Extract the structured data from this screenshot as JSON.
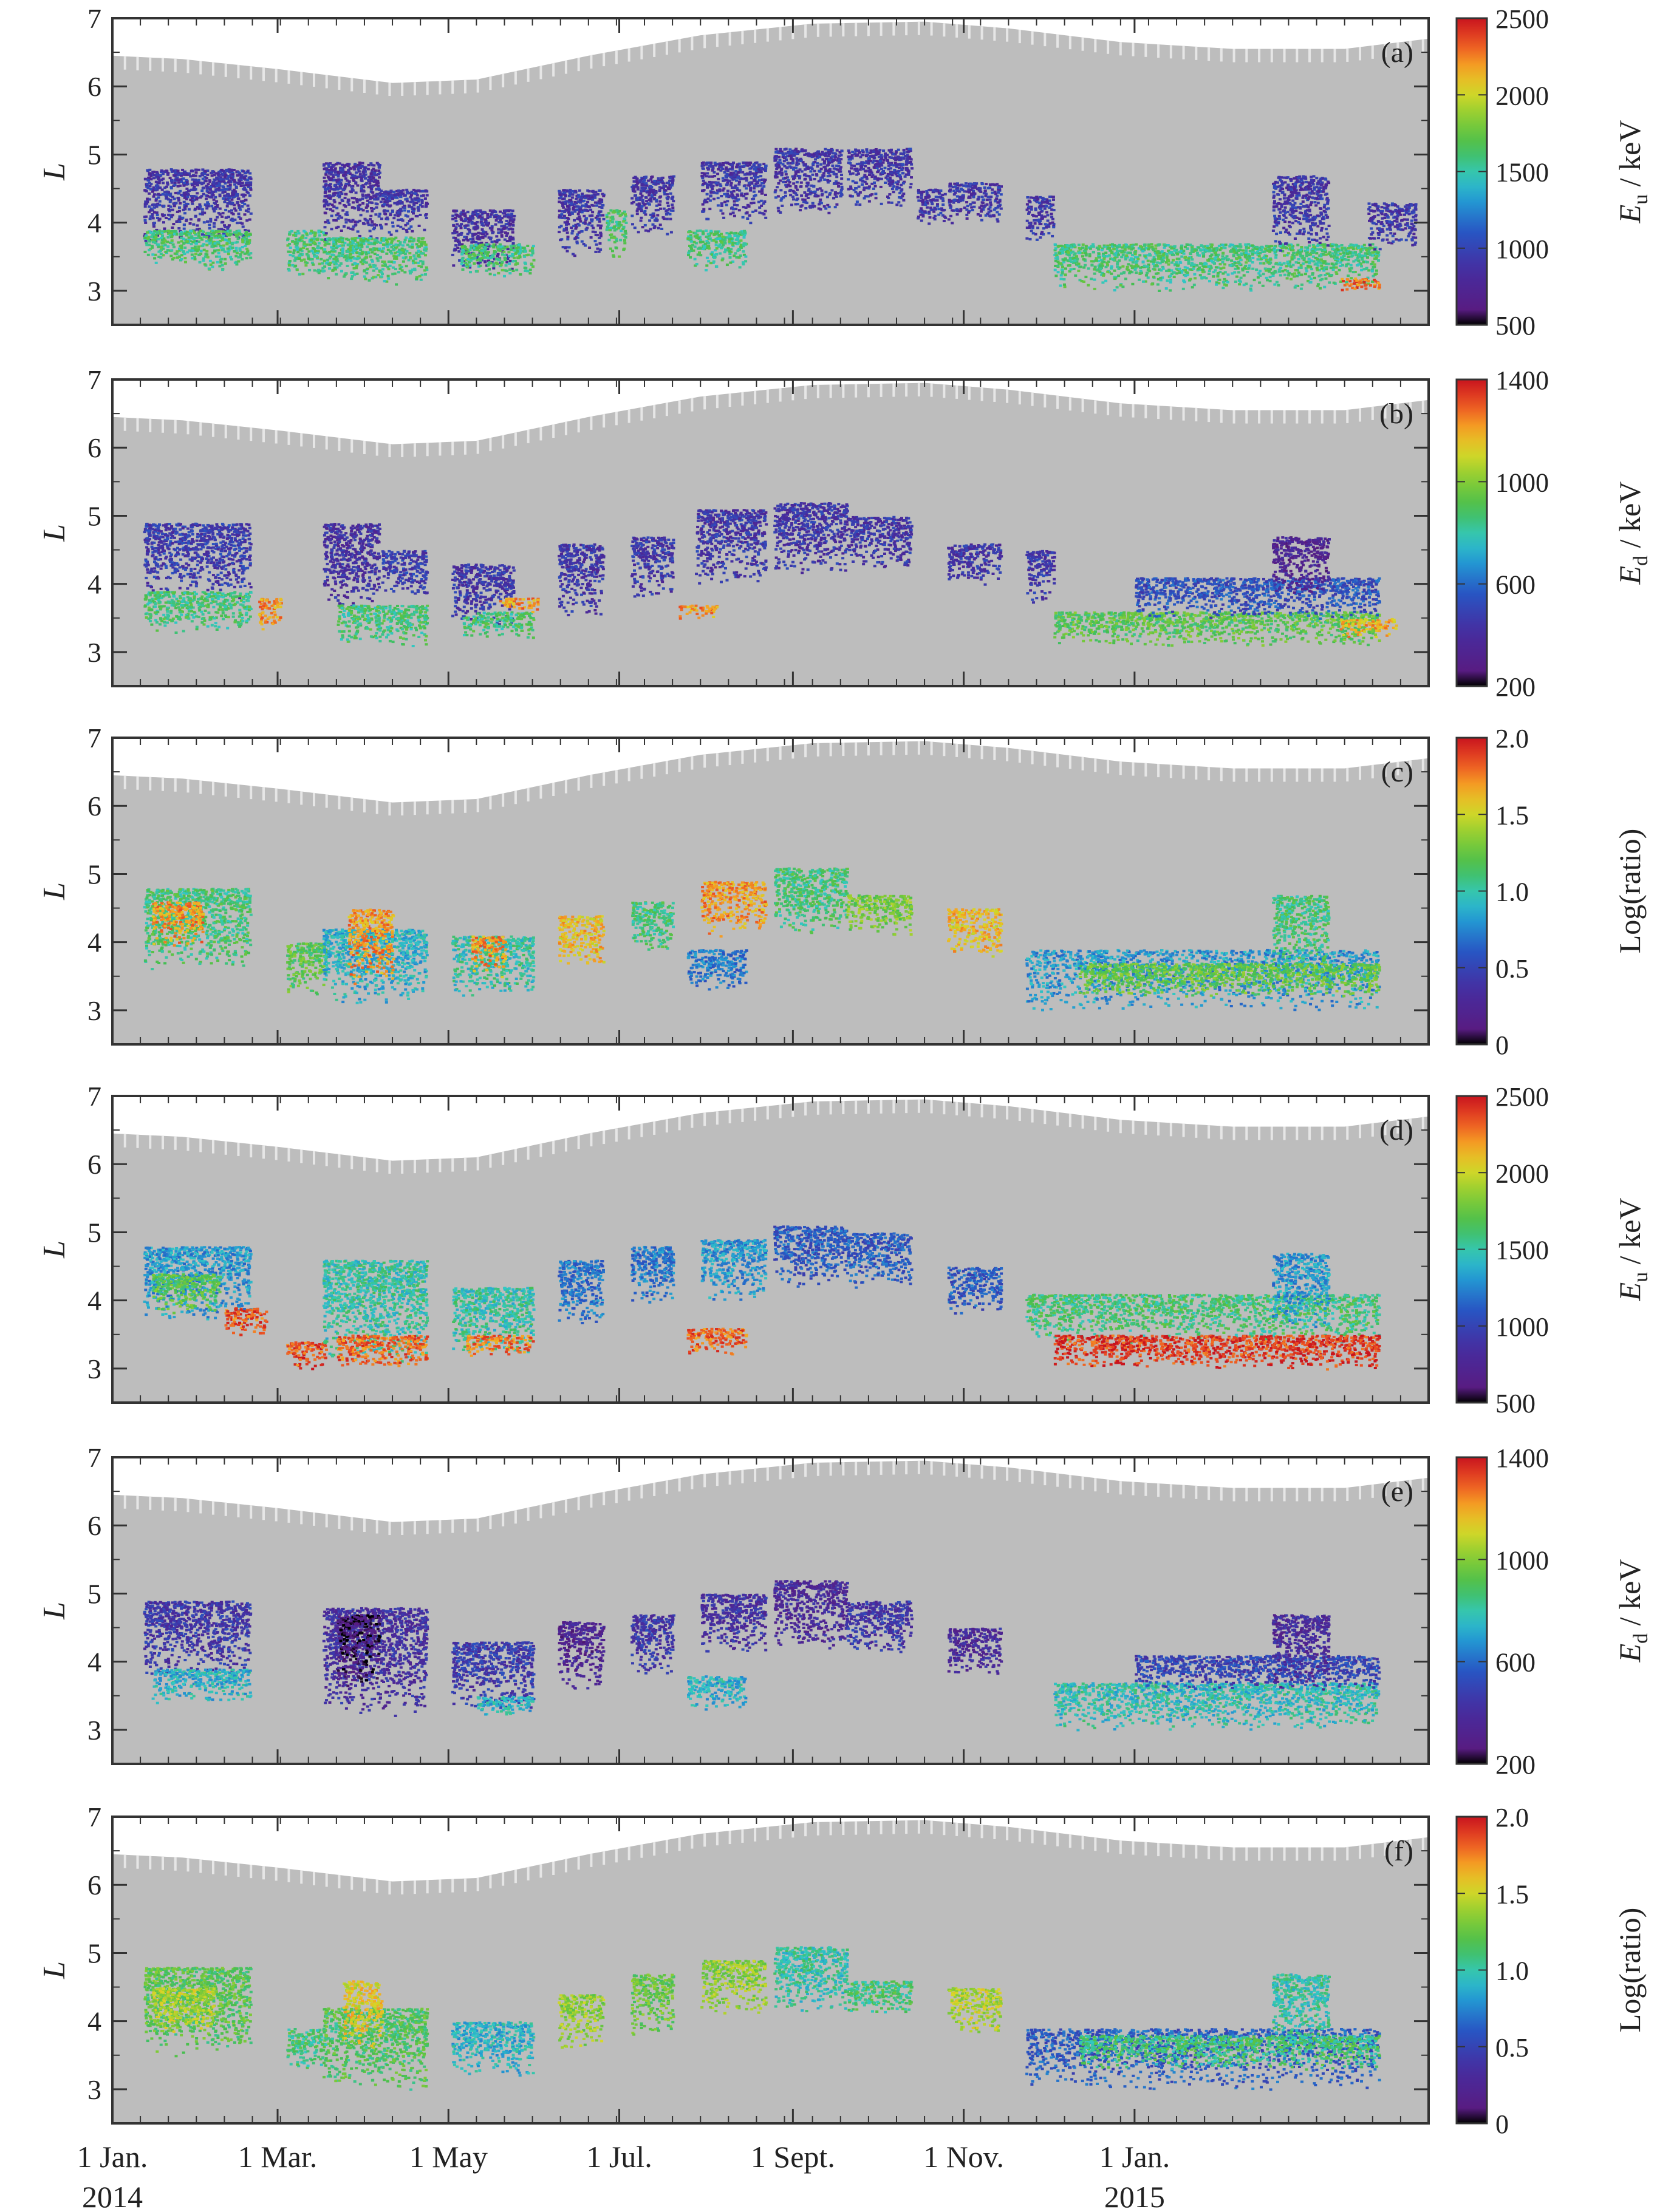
{
  "chart_data": [
    {
      "type": "heatmap",
      "panel_label": "(a)",
      "ylabel": "L",
      "yticks": [
        3,
        4,
        5,
        6,
        7
      ],
      "ylim": [
        2.5,
        7
      ],
      "colorbar": {
        "label_main": "E",
        "label_sub": "u",
        "label_unit": " / keV",
        "ticks": [
          "2500",
          "2000",
          "1500",
          "1000",
          "500"
        ],
        "range": [
          500,
          2500
        ]
      },
      "blobs": [
        {
          "x0": 11,
          "x1": 49,
          "l0": 3.7,
          "l1": 4.8,
          "v": 0.2
        },
        {
          "x0": 11,
          "x1": 49,
          "l0": 3.3,
          "l1": 3.9,
          "v": 0.55
        },
        {
          "x0": 62,
          "x1": 76,
          "l0": 3.2,
          "l1": 3.9,
          "v": 0.55
        },
        {
          "x0": 75,
          "x1": 95,
          "l0": 3.7,
          "l1": 4.9,
          "v": 0.18
        },
        {
          "x0": 76,
          "x1": 112,
          "l0": 3.1,
          "l1": 3.8,
          "v": 0.55
        },
        {
          "x0": 95,
          "x1": 112,
          "l0": 3.8,
          "l1": 4.5,
          "v": 0.2
        },
        {
          "x0": 121,
          "x1": 143,
          "l0": 3.3,
          "l1": 4.2,
          "v": 0.18
        },
        {
          "x0": 124,
          "x1": 150,
          "l0": 3.2,
          "l1": 3.7,
          "v": 0.55
        },
        {
          "x0": 159,
          "x1": 175,
          "l0": 3.5,
          "l1": 4.5,
          "v": 0.2
        },
        {
          "x0": 176,
          "x1": 183,
          "l0": 3.5,
          "l1": 4.2,
          "v": 0.55
        },
        {
          "x0": 185,
          "x1": 200,
          "l0": 3.8,
          "l1": 4.7,
          "v": 0.2
        },
        {
          "x0": 205,
          "x1": 226,
          "l0": 3.3,
          "l1": 3.9,
          "v": 0.55
        },
        {
          "x0": 210,
          "x1": 233,
          "l0": 4.0,
          "l1": 4.9,
          "v": 0.2
        },
        {
          "x0": 236,
          "x1": 260,
          "l0": 4.1,
          "l1": 5.1,
          "v": 0.2
        },
        {
          "x0": 262,
          "x1": 285,
          "l0": 4.2,
          "l1": 5.1,
          "v": 0.2
        },
        {
          "x0": 287,
          "x1": 297,
          "l0": 3.9,
          "l1": 4.5,
          "v": 0.2
        },
        {
          "x0": 298,
          "x1": 317,
          "l0": 4.0,
          "l1": 4.6,
          "v": 0.2
        },
        {
          "x0": 326,
          "x1": 336,
          "l0": 3.7,
          "l1": 4.4,
          "v": 0.2
        },
        {
          "x0": 336,
          "x1": 452,
          "l0": 3.0,
          "l1": 3.7,
          "v": 0.55
        },
        {
          "x0": 414,
          "x1": 434,
          "l0": 3.6,
          "l1": 4.7,
          "v": 0.2
        },
        {
          "x0": 438,
          "x1": 452,
          "l0": 3.0,
          "l1": 3.2,
          "v": 0.9
        },
        {
          "x0": 448,
          "x1": 465,
          "l0": 3.6,
          "l1": 4.3,
          "v": 0.2
        }
      ]
    },
    {
      "type": "heatmap",
      "panel_label": "(b)",
      "ylabel": "L",
      "yticks": [
        3,
        4,
        5,
        6,
        7
      ],
      "ylim": [
        2.5,
        7
      ],
      "colorbar": {
        "label_main": "E",
        "label_sub": "d",
        "label_unit": " / keV",
        "ticks": [
          "1400",
          "1000",
          "600",
          "200"
        ],
        "range": [
          200,
          1400
        ]
      },
      "blobs": [
        {
          "x0": 11,
          "x1": 49,
          "l0": 3.8,
          "l1": 4.9,
          "v": 0.22
        },
        {
          "x0": 11,
          "x1": 49,
          "l0": 3.3,
          "l1": 3.9,
          "v": 0.55
        },
        {
          "x0": 52,
          "x1": 60,
          "l0": 3.3,
          "l1": 3.8,
          "v": 0.85
        },
        {
          "x0": 75,
          "x1": 95,
          "l0": 3.6,
          "l1": 4.9,
          "v": 0.18
        },
        {
          "x0": 80,
          "x1": 112,
          "l0": 3.1,
          "l1": 3.7,
          "v": 0.55
        },
        {
          "x0": 96,
          "x1": 112,
          "l0": 3.8,
          "l1": 4.5,
          "v": 0.22
        },
        {
          "x0": 121,
          "x1": 143,
          "l0": 3.4,
          "l1": 4.3,
          "v": 0.2
        },
        {
          "x0": 125,
          "x1": 150,
          "l0": 3.2,
          "l1": 3.6,
          "v": 0.55
        },
        {
          "x0": 138,
          "x1": 152,
          "l0": 3.6,
          "l1": 3.8,
          "v": 0.85
        },
        {
          "x0": 159,
          "x1": 175,
          "l0": 3.5,
          "l1": 4.6,
          "v": 0.2
        },
        {
          "x0": 185,
          "x1": 200,
          "l0": 3.8,
          "l1": 4.7,
          "v": 0.2
        },
        {
          "x0": 202,
          "x1": 216,
          "l0": 3.5,
          "l1": 3.7,
          "v": 0.85
        },
        {
          "x0": 208,
          "x1": 233,
          "l0": 4.0,
          "l1": 5.1,
          "v": 0.2
        },
        {
          "x0": 236,
          "x1": 262,
          "l0": 4.1,
          "l1": 5.2,
          "v": 0.2
        },
        {
          "x0": 262,
          "x1": 285,
          "l0": 4.2,
          "l1": 5.0,
          "v": 0.2
        },
        {
          "x0": 298,
          "x1": 317,
          "l0": 4.0,
          "l1": 4.6,
          "v": 0.2
        },
        {
          "x0": 326,
          "x1": 336,
          "l0": 3.7,
          "l1": 4.5,
          "v": 0.2
        },
        {
          "x0": 336,
          "x1": 452,
          "l0": 3.1,
          "l1": 3.6,
          "v": 0.6
        },
        {
          "x0": 365,
          "x1": 452,
          "l0": 3.5,
          "l1": 4.1,
          "v": 0.28
        },
        {
          "x0": 414,
          "x1": 434,
          "l0": 3.8,
          "l1": 4.7,
          "v": 0.12
        },
        {
          "x0": 438,
          "x1": 458,
          "l0": 3.2,
          "l1": 3.5,
          "v": 0.82
        }
      ]
    },
    {
      "type": "heatmap",
      "panel_label": "(c)",
      "ylabel": "L",
      "yticks": [
        3,
        4,
        5,
        6,
        7
      ],
      "ylim": [
        2.5,
        7
      ],
      "colorbar": {
        "label_main": "Log(ratio)",
        "label_sub": "",
        "label_unit": "",
        "ticks": [
          "2.0",
          "1.5",
          "1.0",
          "0.5",
          "0"
        ],
        "range": [
          0,
          2
        ]
      },
      "blobs": [
        {
          "x0": 11,
          "x1": 49,
          "l0": 3.6,
          "l1": 4.8,
          "v": 0.55
        },
        {
          "x0": 14,
          "x1": 32,
          "l0": 3.9,
          "l1": 4.6,
          "v": 0.85
        },
        {
          "x0": 62,
          "x1": 76,
          "l0": 3.2,
          "l1": 4.0,
          "v": 0.6
        },
        {
          "x0": 75,
          "x1": 112,
          "l0": 3.1,
          "l1": 4.2,
          "v": 0.45
        },
        {
          "x0": 84,
          "x1": 100,
          "l0": 3.4,
          "l1": 4.5,
          "v": 0.85
        },
        {
          "x0": 121,
          "x1": 150,
          "l0": 3.2,
          "l1": 4.1,
          "v": 0.5
        },
        {
          "x0": 128,
          "x1": 140,
          "l0": 3.5,
          "l1": 4.1,
          "v": 0.85
        },
        {
          "x0": 159,
          "x1": 175,
          "l0": 3.6,
          "l1": 4.4,
          "v": 0.8
        },
        {
          "x0": 185,
          "x1": 200,
          "l0": 3.8,
          "l1": 4.6,
          "v": 0.55
        },
        {
          "x0": 205,
          "x1": 226,
          "l0": 3.3,
          "l1": 3.9,
          "v": 0.35
        },
        {
          "x0": 210,
          "x1": 233,
          "l0": 4.1,
          "l1": 4.9,
          "v": 0.85
        },
        {
          "x0": 236,
          "x1": 262,
          "l0": 4.1,
          "l1": 5.1,
          "v": 0.55
        },
        {
          "x0": 262,
          "x1": 285,
          "l0": 4.1,
          "l1": 4.7,
          "v": 0.65
        },
        {
          "x0": 298,
          "x1": 317,
          "l0": 3.8,
          "l1": 4.5,
          "v": 0.8
        },
        {
          "x0": 326,
          "x1": 452,
          "l0": 3.0,
          "l1": 3.9,
          "v": 0.4
        },
        {
          "x0": 345,
          "x1": 452,
          "l0": 3.2,
          "l1": 3.7,
          "v": 0.62
        },
        {
          "x0": 414,
          "x1": 434,
          "l0": 3.6,
          "l1": 4.7,
          "v": 0.55
        }
      ]
    },
    {
      "type": "heatmap",
      "panel_label": "(d)",
      "ylabel": "L",
      "yticks": [
        3,
        4,
        5,
        6,
        7
      ],
      "ylim": [
        2.5,
        7
      ],
      "colorbar": {
        "label_main": "E",
        "label_sub": "u",
        "label_unit": " / keV",
        "ticks": [
          "2500",
          "2000",
          "1500",
          "1000",
          "500"
        ],
        "range": [
          500,
          2500
        ]
      },
      "blobs": [
        {
          "x0": 11,
          "x1": 49,
          "l0": 3.7,
          "l1": 4.8,
          "v": 0.4
        },
        {
          "x0": 14,
          "x1": 38,
          "l0": 3.8,
          "l1": 4.4,
          "v": 0.6
        },
        {
          "x0": 40,
          "x1": 55,
          "l0": 3.5,
          "l1": 3.9,
          "v": 0.92
        },
        {
          "x0": 62,
          "x1": 76,
          "l0": 3.0,
          "l1": 3.4,
          "v": 0.92
        },
        {
          "x0": 75,
          "x1": 112,
          "l0": 3.1,
          "l1": 4.6,
          "v": 0.5
        },
        {
          "x0": 80,
          "x1": 112,
          "l0": 3.0,
          "l1": 3.5,
          "v": 0.9
        },
        {
          "x0": 121,
          "x1": 150,
          "l0": 3.2,
          "l1": 4.2,
          "v": 0.5
        },
        {
          "x0": 126,
          "x1": 150,
          "l0": 3.2,
          "l1": 3.5,
          "v": 0.88
        },
        {
          "x0": 159,
          "x1": 175,
          "l0": 3.6,
          "l1": 4.6,
          "v": 0.35
        },
        {
          "x0": 185,
          "x1": 200,
          "l0": 3.9,
          "l1": 4.8,
          "v": 0.35
        },
        {
          "x0": 205,
          "x1": 226,
          "l0": 3.2,
          "l1": 3.6,
          "v": 0.9
        },
        {
          "x0": 210,
          "x1": 233,
          "l0": 4.0,
          "l1": 4.9,
          "v": 0.4
        },
        {
          "x0": 236,
          "x1": 262,
          "l0": 4.2,
          "l1": 5.1,
          "v": 0.3
        },
        {
          "x0": 262,
          "x1": 285,
          "l0": 4.2,
          "l1": 5.0,
          "v": 0.3
        },
        {
          "x0": 298,
          "x1": 317,
          "l0": 3.8,
          "l1": 4.5,
          "v": 0.3
        },
        {
          "x0": 326,
          "x1": 452,
          "l0": 3.4,
          "l1": 4.1,
          "v": 0.55
        },
        {
          "x0": 336,
          "x1": 452,
          "l0": 3.0,
          "l1": 3.5,
          "v": 0.95
        },
        {
          "x0": 414,
          "x1": 434,
          "l0": 3.6,
          "l1": 4.7,
          "v": 0.4
        }
      ]
    },
    {
      "type": "heatmap",
      "panel_label": "(e)",
      "ylabel": "L",
      "yticks": [
        3,
        4,
        5,
        6,
        7
      ],
      "ylim": [
        2.5,
        7
      ],
      "colorbar": {
        "label_main": "E",
        "label_sub": "d",
        "label_unit": " / keV",
        "ticks": [
          "1400",
          "1000",
          "600",
          "200"
        ],
        "range": [
          200,
          1400
        ]
      },
      "blobs": [
        {
          "x0": 11,
          "x1": 49,
          "l0": 3.8,
          "l1": 4.9,
          "v": 0.2
        },
        {
          "x0": 14,
          "x1": 49,
          "l0": 3.4,
          "l1": 3.9,
          "v": 0.45
        },
        {
          "x0": 75,
          "x1": 112,
          "l0": 3.2,
          "l1": 4.8,
          "v": 0.18
        },
        {
          "x0": 80,
          "x1": 95,
          "l0": 3.6,
          "l1": 4.7,
          "v": 0.04
        },
        {
          "x0": 121,
          "x1": 150,
          "l0": 3.3,
          "l1": 4.3,
          "v": 0.22
        },
        {
          "x0": 130,
          "x1": 150,
          "l0": 3.2,
          "l1": 3.5,
          "v": 0.45
        },
        {
          "x0": 159,
          "x1": 175,
          "l0": 3.6,
          "l1": 4.6,
          "v": 0.12
        },
        {
          "x0": 185,
          "x1": 200,
          "l0": 3.8,
          "l1": 4.7,
          "v": 0.2
        },
        {
          "x0": 205,
          "x1": 226,
          "l0": 3.3,
          "l1": 3.8,
          "v": 0.45
        },
        {
          "x0": 210,
          "x1": 233,
          "l0": 4.1,
          "l1": 5.0,
          "v": 0.18
        },
        {
          "x0": 236,
          "x1": 262,
          "l0": 4.2,
          "l1": 5.2,
          "v": 0.15
        },
        {
          "x0": 262,
          "x1": 285,
          "l0": 4.1,
          "l1": 4.9,
          "v": 0.2
        },
        {
          "x0": 298,
          "x1": 317,
          "l0": 3.8,
          "l1": 4.5,
          "v": 0.15
        },
        {
          "x0": 336,
          "x1": 452,
          "l0": 3.0,
          "l1": 3.7,
          "v": 0.48
        },
        {
          "x0": 365,
          "x1": 452,
          "l0": 3.6,
          "l1": 4.1,
          "v": 0.25
        },
        {
          "x0": 414,
          "x1": 434,
          "l0": 3.6,
          "l1": 4.7,
          "v": 0.15
        }
      ]
    },
    {
      "type": "heatmap",
      "panel_label": "(f)",
      "ylabel": "L",
      "yticks": [
        3,
        4,
        5,
        6,
        7
      ],
      "ylim": [
        2.5,
        7
      ],
      "colorbar": {
        "label_main": "Log(ratio)",
        "label_sub": "",
        "label_unit": "",
        "ticks": [
          "2.0",
          "1.5",
          "1.0",
          "0.5",
          "0"
        ],
        "range": [
          0,
          2
        ]
      },
      "blobs": [
        {
          "x0": 11,
          "x1": 49,
          "l0": 3.5,
          "l1": 4.8,
          "v": 0.6
        },
        {
          "x0": 14,
          "x1": 36,
          "l0": 3.8,
          "l1": 4.5,
          "v": 0.72
        },
        {
          "x0": 62,
          "x1": 76,
          "l0": 3.3,
          "l1": 3.9,
          "v": 0.55
        },
        {
          "x0": 75,
          "x1": 112,
          "l0": 3.0,
          "l1": 4.2,
          "v": 0.58
        },
        {
          "x0": 82,
          "x1": 96,
          "l0": 3.6,
          "l1": 4.6,
          "v": 0.78
        },
        {
          "x0": 121,
          "x1": 150,
          "l0": 3.2,
          "l1": 4.0,
          "v": 0.45
        },
        {
          "x0": 159,
          "x1": 175,
          "l0": 3.6,
          "l1": 4.4,
          "v": 0.68
        },
        {
          "x0": 185,
          "x1": 200,
          "l0": 3.8,
          "l1": 4.7,
          "v": 0.62
        },
        {
          "x0": 210,
          "x1": 233,
          "l0": 4.1,
          "l1": 4.9,
          "v": 0.68
        },
        {
          "x0": 236,
          "x1": 262,
          "l0": 4.1,
          "l1": 5.1,
          "v": 0.5
        },
        {
          "x0": 262,
          "x1": 285,
          "l0": 4.1,
          "l1": 4.6,
          "v": 0.55
        },
        {
          "x0": 298,
          "x1": 317,
          "l0": 3.8,
          "l1": 4.5,
          "v": 0.72
        },
        {
          "x0": 326,
          "x1": 452,
          "l0": 3.0,
          "l1": 3.9,
          "v": 0.3
        },
        {
          "x0": 345,
          "x1": 452,
          "l0": 3.3,
          "l1": 3.8,
          "v": 0.55
        },
        {
          "x0": 414,
          "x1": 434,
          "l0": 3.6,
          "l1": 4.7,
          "v": 0.5
        }
      ]
    }
  ],
  "shared": {
    "x_unit": "days since 1 Jan. 2014",
    "xlim": [
      0,
      470
    ],
    "xtick_values": [
      0,
      59,
      120,
      181,
      243,
      304,
      365
    ],
    "xtick_labels": [
      "1 Jan.",
      "1 Mar.",
      "1 May",
      "1 Jul.",
      "1 Sept.",
      "1 Nov.",
      "1 Jan."
    ],
    "year_start": "2014",
    "year_end": "2015",
    "apogee_L": [
      [
        0,
        6.45
      ],
      [
        25,
        6.4
      ],
      [
        60,
        6.25
      ],
      [
        100,
        6.05
      ],
      [
        130,
        6.1
      ],
      [
        170,
        6.45
      ],
      [
        210,
        6.75
      ],
      [
        250,
        6.92
      ],
      [
        290,
        6.95
      ],
      [
        320,
        6.85
      ],
      [
        360,
        6.65
      ],
      [
        400,
        6.55
      ],
      [
        440,
        6.55
      ],
      [
        470,
        6.7
      ]
    ],
    "colors": {
      "grey": "#bdbdbd",
      "frame": "#333333"
    }
  }
}
